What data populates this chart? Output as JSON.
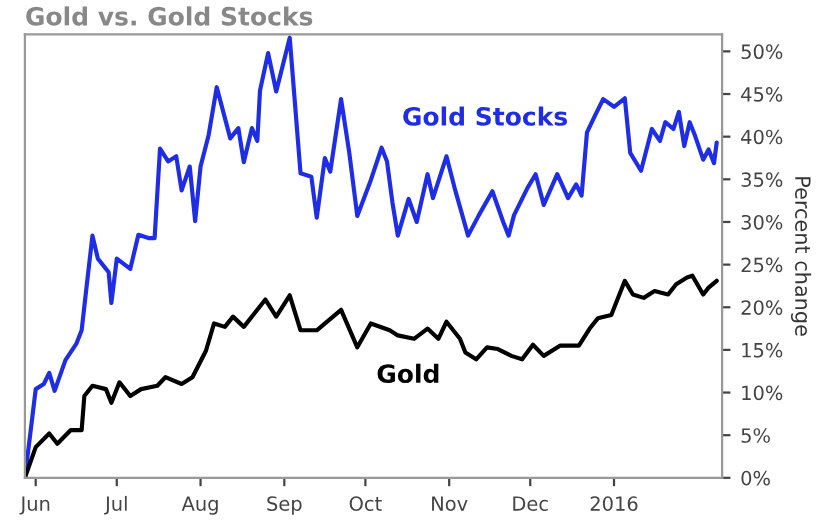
{
  "chart_data": {
    "type": "line",
    "title": "Gold vs. Gold Stocks",
    "ylabel": "Percent change",
    "xlim": [
      "2015-05-28",
      "2016-02-10"
    ],
    "ylim": [
      0,
      52
    ],
    "xticks": [
      {
        "value": "2015-06-01",
        "label": "Jun"
      },
      {
        "value": "2015-07-01",
        "label": "Jul"
      },
      {
        "value": "2015-08-01",
        "label": "Aug"
      },
      {
        "value": "2015-09-01",
        "label": "Sep"
      },
      {
        "value": "2015-10-01",
        "label": "Oct"
      },
      {
        "value": "2015-11-01",
        "label": "Nov"
      },
      {
        "value": "2015-12-01",
        "label": "Dec"
      },
      {
        "value": "2016-01-01",
        "label": "2016"
      }
    ],
    "yticks": [
      {
        "value": 0,
        "label": "0%"
      },
      {
        "value": 5,
        "label": "5%"
      },
      {
        "value": 10,
        "label": "10%"
      },
      {
        "value": 15,
        "label": "15%"
      },
      {
        "value": 20,
        "label": "20%"
      },
      {
        "value": 25,
        "label": "25%"
      },
      {
        "value": 30,
        "label": "30%"
      },
      {
        "value": 35,
        "label": "35%"
      },
      {
        "value": 40,
        "label": "40%"
      },
      {
        "value": 45,
        "label": "45%"
      },
      {
        "value": 50,
        "label": "50%"
      }
    ],
    "grid": false,
    "legend": false,
    "marker": "none",
    "line_style": "solid",
    "series": [
      {
        "name": "Gold Stocks",
        "color": "#1f2ee6",
        "x": [
          "2015-05-28",
          "2015-06-01",
          "2015-06-04",
          "2015-06-06",
          "2015-06-08",
          "2015-06-12",
          "2015-06-16",
          "2015-06-18",
          "2015-06-20",
          "2015-06-22",
          "2015-06-24",
          "2015-06-28",
          "2015-06-29",
          "2015-07-01",
          "2015-07-06",
          "2015-07-09",
          "2015-07-13",
          "2015-07-15",
          "2015-07-17",
          "2015-07-20",
          "2015-07-23",
          "2015-07-25",
          "2015-07-28",
          "2015-07-30",
          "2015-08-01",
          "2015-08-04",
          "2015-08-07",
          "2015-08-12",
          "2015-08-15",
          "2015-08-17",
          "2015-08-20",
          "2015-08-22",
          "2015-08-23",
          "2015-08-26",
          "2015-08-29",
          "2015-09-03",
          "2015-09-07",
          "2015-09-11",
          "2015-09-13",
          "2015-09-16",
          "2015-09-18",
          "2015-09-22",
          "2015-09-25",
          "2015-09-28",
          "2015-10-03",
          "2015-10-07",
          "2015-10-09",
          "2015-10-11",
          "2015-10-13",
          "2015-10-17",
          "2015-10-20",
          "2015-10-24",
          "2015-10-26",
          "2015-10-31",
          "2015-11-03",
          "2015-11-08",
          "2015-11-12",
          "2015-11-17",
          "2015-11-21",
          "2015-11-23",
          "2015-11-25",
          "2015-11-30",
          "2015-12-03",
          "2015-12-06",
          "2015-12-11",
          "2015-12-15",
          "2015-12-18",
          "2015-12-20",
          "2015-12-22",
          "2015-12-25",
          "2015-12-28",
          "2016-01-01",
          "2016-01-05",
          "2016-01-07",
          "2016-01-11",
          "2016-01-15",
          "2016-01-18",
          "2016-01-20",
          "2016-01-23",
          "2016-01-25",
          "2016-01-27",
          "2016-01-29",
          "2016-01-31",
          "2016-02-03",
          "2016-02-05",
          "2016-02-07",
          "2016-02-08"
        ],
        "values": [
          0,
          10.4,
          11,
          12.3,
          10.2,
          13.8,
          15.7,
          17.3,
          22.9,
          28.4,
          25.7,
          24.1,
          20.5,
          25.7,
          24.5,
          28.5,
          28.1,
          28.1,
          38.6,
          37.1,
          37.7,
          33.7,
          36.5,
          30.1,
          36.5,
          40.2,
          45.8,
          39.8,
          41,
          37,
          41,
          39.5,
          45.4,
          49.8,
          45.3,
          51.6,
          35.7,
          35.3,
          30.5,
          37.5,
          35.9,
          44.4,
          38.2,
          30.7,
          34.9,
          38.7,
          37.1,
          32.3,
          28.4,
          32.7,
          30,
          35.6,
          32.8,
          37.7,
          34,
          28.4,
          30.8,
          33.6,
          30,
          28.4,
          30.8,
          34,
          35.6,
          32,
          35.6,
          32.8,
          34.4,
          33.1,
          40.5,
          42.5,
          44.4,
          43.5,
          44.5,
          38.1,
          36,
          40.9,
          39.5,
          41.7,
          40.9,
          42.9,
          38.9,
          41.7,
          40.1,
          37.3,
          38.5,
          36.9,
          39.3
        ]
      },
      {
        "name": "Gold",
        "color": "#000000",
        "x": [
          "2015-05-28",
          "2015-06-01",
          "2015-06-06",
          "2015-06-09",
          "2015-06-14",
          "2015-06-18",
          "2015-06-19",
          "2015-06-22",
          "2015-06-27",
          "2015-06-29",
          "2015-07-02",
          "2015-07-06",
          "2015-07-10",
          "2015-07-16",
          "2015-07-19",
          "2015-07-25",
          "2015-07-29",
          "2015-08-03",
          "2015-08-06",
          "2015-08-10",
          "2015-08-13",
          "2015-08-17",
          "2015-08-22",
          "2015-08-25",
          "2015-08-29",
          "2015-09-03",
          "2015-09-07",
          "2015-09-13",
          "2015-09-22",
          "2015-09-28",
          "2015-10-03",
          "2015-10-10",
          "2015-10-13",
          "2015-10-19",
          "2015-10-24",
          "2015-10-28",
          "2015-10-31",
          "2015-11-05",
          "2015-11-07",
          "2015-11-11",
          "2015-11-15",
          "2015-11-19",
          "2015-11-24",
          "2015-11-28",
          "2015-12-02",
          "2015-12-06",
          "2015-12-12",
          "2015-12-19",
          "2015-12-23",
          "2015-12-26",
          "2015-12-31",
          "2016-01-05",
          "2016-01-08",
          "2016-01-12",
          "2016-01-16",
          "2016-01-21",
          "2016-01-24",
          "2016-01-28",
          "2016-01-30",
          "2016-02-03",
          "2016-02-05",
          "2016-02-08"
        ],
        "values": [
          0,
          3.6,
          5.2,
          4,
          5.6,
          5.6,
          9.6,
          10.8,
          10.4,
          8.8,
          11.2,
          9.6,
          10.4,
          10.8,
          11.8,
          11,
          11.8,
          14.9,
          18.1,
          17.7,
          18.9,
          17.7,
          19.7,
          20.9,
          18.9,
          21.4,
          17.3,
          17.3,
          19.7,
          15.3,
          18.1,
          17.3,
          16.7,
          16.3,
          17.5,
          16.3,
          18.3,
          16.3,
          14.7,
          13.9,
          15.3,
          15.1,
          14.3,
          13.9,
          15.6,
          14.3,
          15.5,
          15.5,
          17.5,
          18.7,
          19.1,
          23.1,
          21.5,
          21.1,
          21.9,
          21.5,
          22.7,
          23.5,
          23.7,
          21.5,
          22.3,
          23.1
        ]
      }
    ]
  }
}
